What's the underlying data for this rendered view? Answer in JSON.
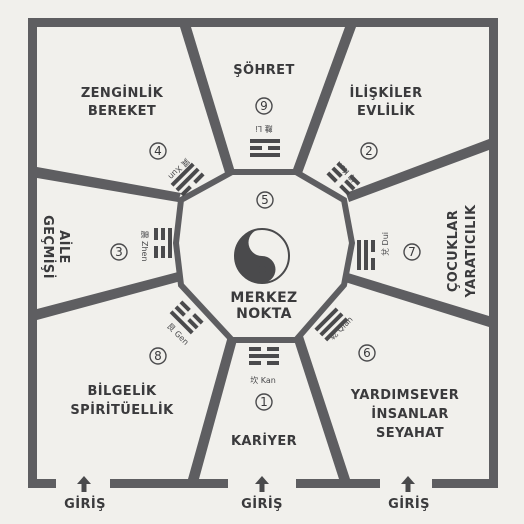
{
  "areas": {
    "fame": {
      "lines": [
        "ŞÖHRET"
      ],
      "number": "9",
      "trigram": "離 Li"
    },
    "relationships": {
      "lines": [
        "İLİŞKİLER",
        "EVLİLİK"
      ],
      "number": "2",
      "trigram": "坤 Kun"
    },
    "children": {
      "lines": [
        "ÇOCUKLAR",
        "YARATICILIK"
      ],
      "number": "7",
      "trigram": "兌 Dui"
    },
    "helpful_people": {
      "lines": [
        "YARDIMSEVER",
        "İNSANLAR",
        "SEYAHAT"
      ],
      "number": "6",
      "trigram": "乾 Qian"
    },
    "career": {
      "lines": [
        "KARİYER"
      ],
      "number": "1",
      "trigram": "坎 Kan"
    },
    "knowledge": {
      "lines": [
        "BİLGELİK",
        "SPİRİTÜELLİK"
      ],
      "number": "8",
      "trigram": "艮 Gen"
    },
    "family": {
      "lines": [
        "AİLE",
        "GEÇMİŞİ"
      ],
      "number": "3",
      "trigram": "震 Zhen"
    },
    "wealth": {
      "lines": [
        "ZENGİNLİK",
        "BEREKET"
      ],
      "number": "4",
      "trigram": "巽 Xun"
    },
    "center": {
      "lines": [
        "MERKEZ",
        "NOKTA"
      ],
      "number": "5"
    }
  },
  "entrances": [
    "GİRİŞ",
    "GİRİŞ",
    "GİRİŞ"
  ],
  "colors": {
    "wall": "#5e5e61",
    "text": "#3a3a3c",
    "background": "#f1f0ec"
  }
}
